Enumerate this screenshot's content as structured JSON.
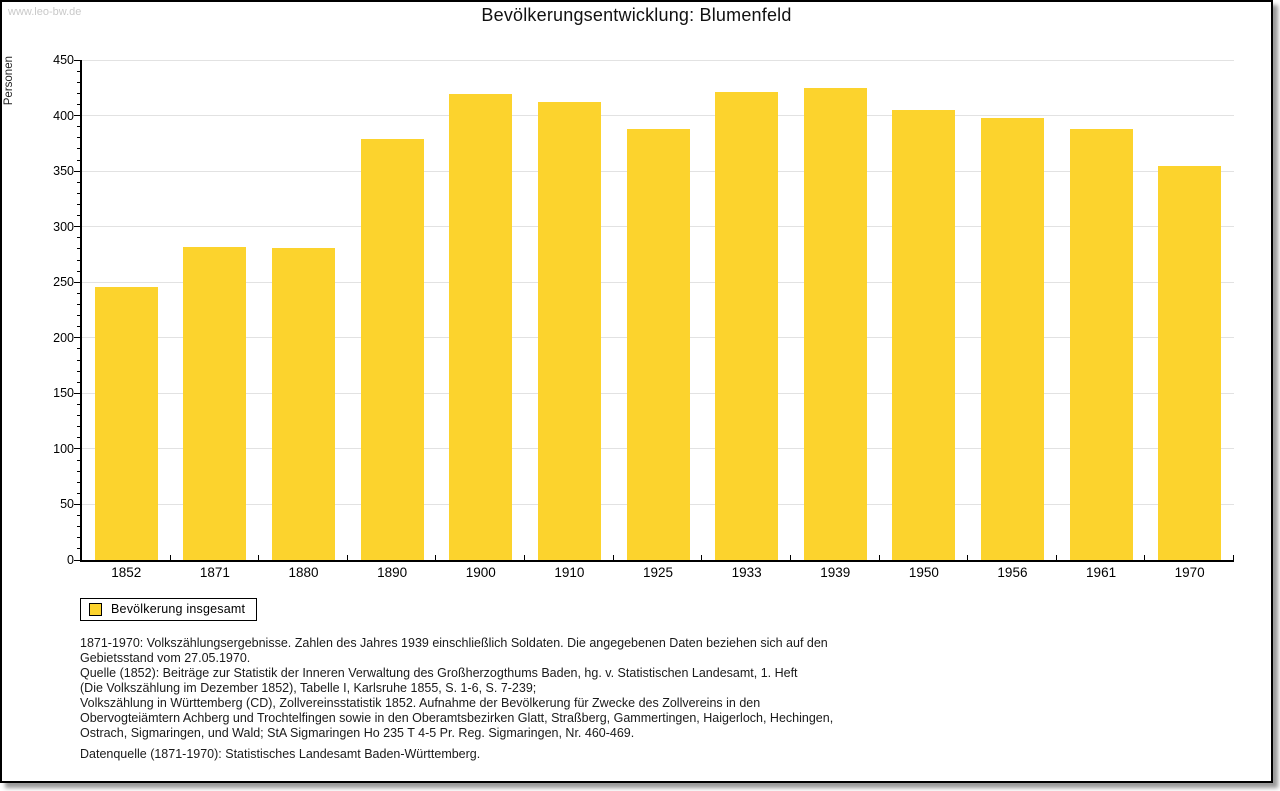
{
  "watermark": "www.leo-bw.de",
  "header": {
    "title": "Bevölkerungsentwicklung: Blumenfeld"
  },
  "chart_data": {
    "type": "bar",
    "title": "Bevölkerungsentwicklung: Blumenfeld",
    "xlabel": "",
    "ylabel": "Personen",
    "categories": [
      "1852",
      "1871",
      "1880",
      "1890",
      "1900",
      "1910",
      "1925",
      "1933",
      "1939",
      "1950",
      "1956",
      "1961",
      "1970"
    ],
    "values": [
      246,
      282,
      281,
      379,
      419,
      412,
      388,
      421,
      425,
      405,
      398,
      388,
      355
    ],
    "series_name": "Bevölkerung insgesamt",
    "ylim": [
      0,
      450
    ],
    "ytick_step": 50,
    "yminor_step": 10,
    "grid": true,
    "legend_position": "bottom-left",
    "bar_color": "#FCD32D",
    "grid_color": "#e2e2e2"
  },
  "legend": {
    "label": "Bevölkerung insgesamt",
    "swatch_color": "#FCD32D"
  },
  "footer": {
    "lines": [
      "1871-1970: Volkszählungsergebnisse. Zahlen des Jahres 1939 einschließlich Soldaten. Die angegebenen Daten beziehen sich auf den",
      "Gebietsstand vom 27.05.1970.",
      "Quelle (1852): Beiträge zur Statistik der Inneren Verwaltung des Großherzogthums Baden, hg. v. Statistischen Landesamt, 1. Heft",
      "(Die Volkszählung im Dezember 1852), Tabelle I, Karlsruhe 1855, S. 1-6, S. 7-239;",
      "Volkszählung in Württemberg (CD), Zollvereinsstatistik 1852. Aufnahme der Bevölkerung für Zwecke des Zollvereins in den",
      "Obervogteiämtern Achberg und Trochtelfingen sowie in den Oberamtsbezirken Glatt, Straßberg, Gammertingen, Haigerloch, Hechingen,",
      "Ostrach, Sigmaringen, und Wald; StA Sigmaringen Ho 235 T 4-5 Pr. Reg. Sigmaringen, Nr. 460-469."
    ],
    "datasource": "Datenquelle (1871-1970): Statistisches Landesamt Baden-Württemberg."
  }
}
